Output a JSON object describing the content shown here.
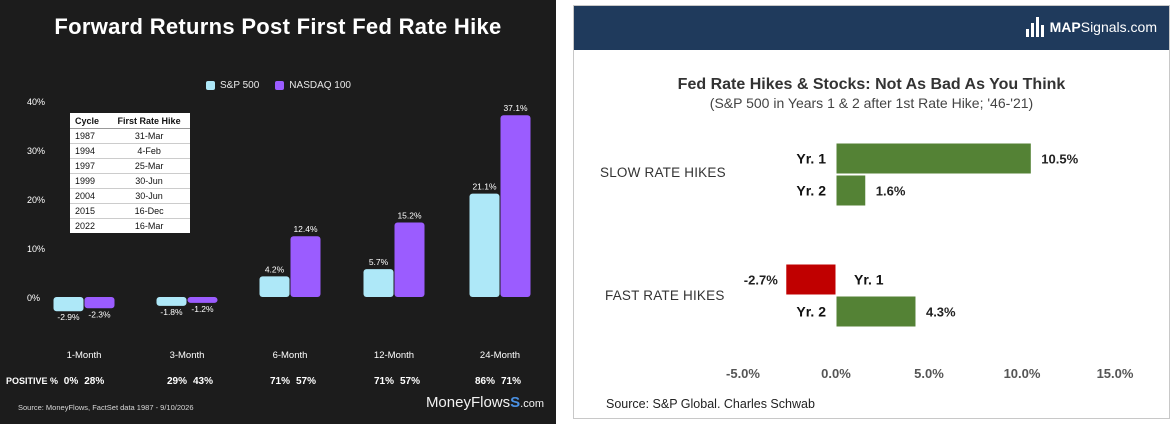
{
  "left": {
    "title": "Forward Returns Post First Fed Rate Hike",
    "legend": [
      {
        "name": "S&P 500",
        "color": "#aee8f8"
      },
      {
        "name": "NASDAQ 100",
        "color": "#9b5cff"
      }
    ],
    "cycle_table": {
      "headers": [
        "Cycle",
        "First Rate Hike"
      ],
      "rows": [
        [
          "1987",
          "31-Mar"
        ],
        [
          "1994",
          "4-Feb"
        ],
        [
          "1997",
          "25-Mar"
        ],
        [
          "1999",
          "30-Jun"
        ],
        [
          "2004",
          "30-Jun"
        ],
        [
          "2015",
          "16-Dec"
        ],
        [
          "2022",
          "16-Mar"
        ]
      ]
    },
    "positive_label": "POSITIVE %",
    "positive_values": [
      {
        "sp500": "0%",
        "nasdaq": "28%"
      },
      {
        "sp500": "29%",
        "nasdaq": "43%"
      },
      {
        "sp500": "71%",
        "nasdaq": "57%"
      },
      {
        "sp500": "71%",
        "nasdaq": "57%"
      },
      {
        "sp500": "86%",
        "nasdaq": "71%"
      }
    ],
    "source": "Source: MoneyFlows, FactSet data 1987 - 9/10/2026",
    "logo": {
      "name": "MoneyFlows",
      "mark": "S",
      "suffix": ".com"
    }
  },
  "right": {
    "title": "Fed Rate Hikes & Stocks: Not As Bad As You Think",
    "subtitle": "(S&P 500 in Years 1 & 2 after 1st Rate Hike; '46-'21)",
    "logo": {
      "bold": "MAP",
      "rest": "Signals.com"
    },
    "groups": [
      "SLOW RATE HIKES",
      "FAST RATE HIKES"
    ],
    "source": "Source: S&P Global. Charles Schwab"
  },
  "chart_data": [
    {
      "type": "bar",
      "title": "Forward Returns Post First Fed Rate Hike",
      "categories": [
        "1-Month",
        "3-Month",
        "6-Month",
        "12-Month",
        "24-Month"
      ],
      "series": [
        {
          "name": "S&P 500",
          "values": [
            -2.9,
            -1.8,
            4.2,
            5.7,
            21.1
          ],
          "labels": [
            "-2.9%",
            "-1.8%",
            "4.2%",
            "5.7%",
            "21.1%"
          ],
          "color": "#aee8f8"
        },
        {
          "name": "NASDAQ 100",
          "values": [
            -2.3,
            -1.2,
            12.4,
            15.2,
            37.1
          ],
          "labels": [
            "-2.3%",
            "-1.2%",
            "12.4%",
            "15.2%",
            "37.1%"
          ],
          "color": "#9b5cff"
        }
      ],
      "yticks": [
        "40%",
        "30%",
        "20%",
        "10%",
        "0%"
      ],
      "ytick_values": [
        40,
        30,
        20,
        10,
        0
      ],
      "ylim": [
        -5,
        40
      ],
      "grid": false,
      "legend": "top"
    },
    {
      "type": "bar",
      "orientation": "horizontal",
      "title": "Fed Rate Hikes & Stocks: Not As Bad As You Think",
      "subtitle": "(S&P 500 in Years 1 & 2 after 1st Rate Hike; '46-'21)",
      "bars": [
        {
          "group": "SLOW RATE HIKES",
          "label": "Yr. 1",
          "value": 10.5,
          "value_label": "10.5%",
          "color": "#548235"
        },
        {
          "group": "SLOW RATE HIKES",
          "label": "Yr. 2",
          "value": 1.6,
          "value_label": "1.6%",
          "color": "#548235"
        },
        {
          "group": "FAST RATE HIKES",
          "label": "Yr. 1",
          "value": -2.7,
          "value_label": "-2.7%",
          "color": "#c00000"
        },
        {
          "group": "FAST RATE HIKES",
          "label": "Yr. 2",
          "value": 4.3,
          "value_label": "4.3%",
          "color": "#548235"
        }
      ],
      "xticks": [
        "-5.0%",
        "0.0%",
        "5.0%",
        "10.0%",
        "15.0%"
      ],
      "xtick_values": [
        -5,
        0,
        5,
        10,
        15
      ],
      "xlim": [
        -5,
        15
      ],
      "grid": false
    }
  ]
}
